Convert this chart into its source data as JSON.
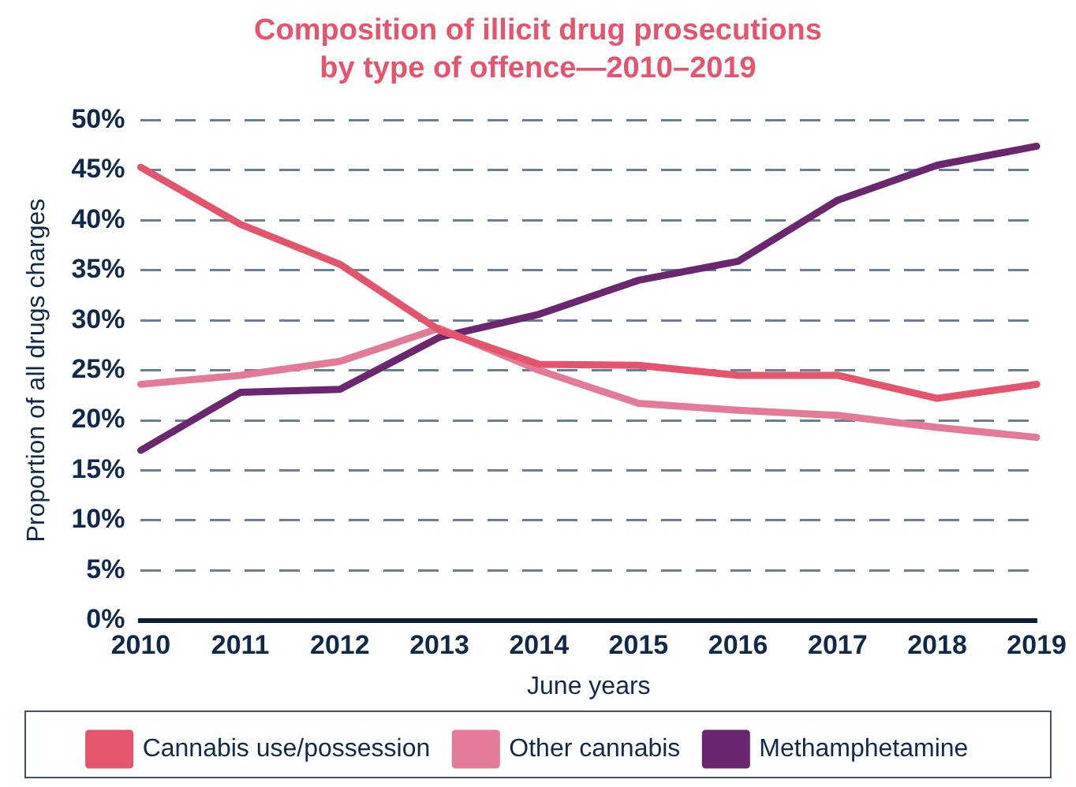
{
  "chart_data": {
    "type": "line",
    "title": "Composition of illicit drug  prosecutions\nby type of offence—2010–2019",
    "xlabel": "June years",
    "ylabel": "Proportion of all drugs charges",
    "categories": [
      "2010",
      "2011",
      "2012",
      "2013",
      "2014",
      "2015",
      "2016",
      "2017",
      "2018",
      "2019"
    ],
    "series": [
      {
        "name": "Cannabis use/possession",
        "color": "#e5546d",
        "values": [
          45.3,
          39.6,
          35.6,
          29,
          25.6,
          25.5,
          24.5,
          24.5,
          22.2,
          23.6
        ]
      },
      {
        "name": "Other cannabis",
        "color": "#e37b98",
        "values": [
          23.6,
          24.5,
          25.9,
          29.2,
          25,
          21.7,
          21,
          20.5,
          19.3,
          18.3
        ]
      },
      {
        "name": "Methamphetamine",
        "color": "#6b2670",
        "values": [
          17,
          22.8,
          23.1,
          28.3,
          30.6,
          34,
          35.9,
          42,
          45.5,
          47.4
        ]
      }
    ],
    "ylim": [
      0,
      50
    ],
    "yticks": [
      {
        "value": 0,
        "label": "0%"
      },
      {
        "value": 5,
        "label": "5%"
      },
      {
        "value": 10,
        "label": "10%"
      },
      {
        "value": 15,
        "label": "15%"
      },
      {
        "value": 20,
        "label": "20%"
      },
      {
        "value": 25,
        "label": "25%"
      },
      {
        "value": 30,
        "label": "30%"
      },
      {
        "value": 35,
        "label": "35%"
      },
      {
        "value": 40,
        "label": "40%"
      },
      {
        "value": 45,
        "label": "45%"
      },
      {
        "value": 50,
        "label": "50%"
      }
    ],
    "grid": "y",
    "legend": "bottom",
    "marker": "none",
    "line_style": "solid"
  }
}
